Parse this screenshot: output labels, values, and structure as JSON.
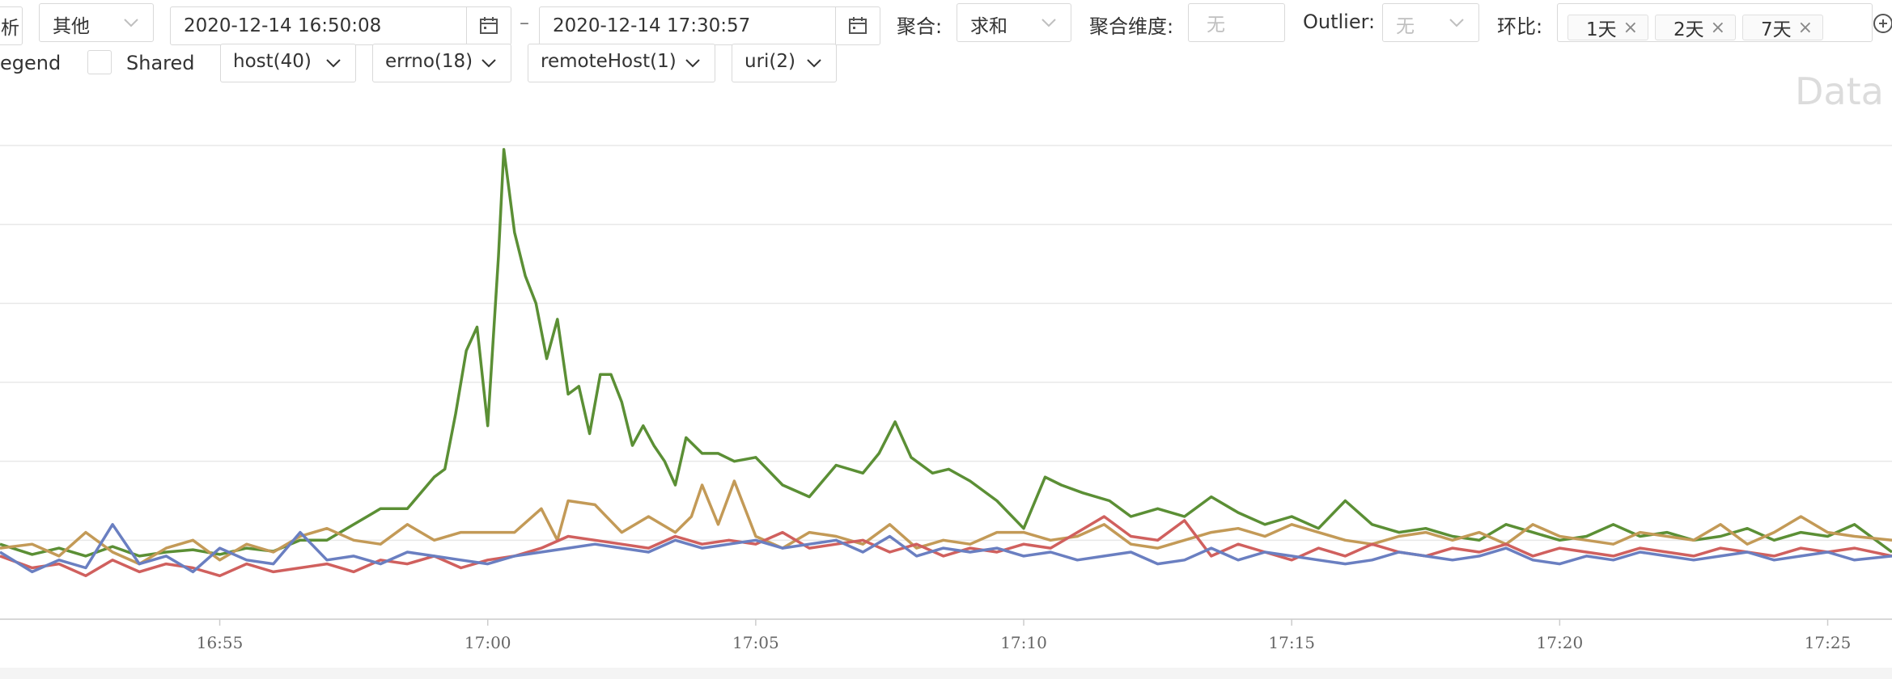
{
  "toolbar": {
    "partial_left_label": "析",
    "category_select": "其他",
    "start_time": "2020-12-14 16:50:08",
    "range_separator": "–",
    "end_time": "2020-12-14 17:30:57",
    "aggregate_label": "聚合:",
    "aggregate_value": "求和",
    "aggregate_dim_label": "聚合维度:",
    "aggregate_dim_placeholder": "无",
    "outlier_label": "Outlier:",
    "outlier_placeholder": "无",
    "compare_label": "环比:",
    "compare_tags": [
      "1天",
      "2天",
      "7天"
    ]
  },
  "row2": {
    "legend_label": "egend",
    "shared_label": "Shared",
    "filters": [
      "host(40)",
      "errno(18)",
      "remoteHost(1)",
      "uri(2)"
    ]
  },
  "chart_watermark": "Data",
  "chart_data": {
    "type": "line",
    "x_tick_labels": [
      "16:55",
      "17:00",
      "17:05",
      "17:10",
      "17:15",
      "17:20",
      "17:25"
    ],
    "x_tick_minutes": [
      -5,
      0,
      5,
      10,
      15,
      20,
      25
    ],
    "x_range_minutes": [
      -9.1,
      26.2
    ],
    "y_range": [
      0,
      6
    ],
    "gridlines": 6,
    "series": [
      {
        "color": "#5b8f35",
        "x": [
          -9.1,
          -8.5,
          -8,
          -7.5,
          -7,
          -6.5,
          -6,
          -5.5,
          -5,
          -4.5,
          -4,
          -3.5,
          -3,
          -2.5,
          -2,
          -1.5,
          -1,
          -0.8,
          -0.6,
          -0.4,
          -0.2,
          0,
          0.2,
          0.3,
          0.5,
          0.7,
          0.9,
          1.1,
          1.3,
          1.5,
          1.7,
          1.9,
          2.1,
          2.3,
          2.5,
          2.7,
          2.9,
          3.1,
          3.3,
          3.5,
          3.7,
          4,
          4.3,
          4.6,
          5,
          5.5,
          6,
          6.5,
          7,
          7.3,
          7.6,
          7.9,
          8.3,
          8.6,
          9,
          9.5,
          10,
          10.4,
          10.7,
          11.1,
          11.6,
          12,
          12.5,
          13,
          13.5,
          14,
          14.5,
          15,
          15.5,
          16,
          16.5,
          17,
          17.5,
          18,
          18.5,
          19,
          19.5,
          20,
          20.5,
          21,
          21.5,
          22,
          22.5,
          23,
          23.5,
          24,
          24.5,
          25,
          25.5,
          26.2
        ],
        "y": [
          0.95,
          0.82,
          0.9,
          0.8,
          0.92,
          0.8,
          0.85,
          0.88,
          0.82,
          0.9,
          0.86,
          1.0,
          1.0,
          1.2,
          1.4,
          1.4,
          1.8,
          1.9,
          2.6,
          3.4,
          3.7,
          2.45,
          4.6,
          5.95,
          4.9,
          4.35,
          4.0,
          3.3,
          3.8,
          2.85,
          2.95,
          2.35,
          3.1,
          3.1,
          2.75,
          2.2,
          2.45,
          2.2,
          2.0,
          1.7,
          2.3,
          2.1,
          2.1,
          2.0,
          2.05,
          1.7,
          1.55,
          1.95,
          1.85,
          2.1,
          2.5,
          2.05,
          1.85,
          1.9,
          1.75,
          1.5,
          1.15,
          1.8,
          1.7,
          1.6,
          1.5,
          1.3,
          1.4,
          1.3,
          1.55,
          1.35,
          1.2,
          1.3,
          1.15,
          1.5,
          1.2,
          1.1,
          1.15,
          1.05,
          1.0,
          1.2,
          1.1,
          1.0,
          1.05,
          1.2,
          1.05,
          1.1,
          1.0,
          1.05,
          1.15,
          1.0,
          1.1,
          1.05,
          1.2,
          0.85
        ]
      },
      {
        "color": "#c39a57",
        "x": [
          -9.1,
          -8.5,
          -8,
          -7.5,
          -7,
          -6.5,
          -6,
          -5.5,
          -5,
          -4.5,
          -4,
          -3.5,
          -3,
          -2.5,
          -2,
          -1.5,
          -1,
          -0.5,
          0,
          0.5,
          1,
          1.3,
          1.5,
          2,
          2.5,
          3,
          3.5,
          3.8,
          4,
          4.3,
          4.6,
          5,
          5.5,
          6,
          6.5,
          7,
          7.5,
          8,
          8.5,
          9,
          9.5,
          10,
          10.5,
          11,
          11.5,
          12,
          12.5,
          13,
          13.5,
          14,
          14.5,
          15,
          15.5,
          16,
          16.5,
          17,
          17.5,
          18,
          18.5,
          19,
          19.5,
          20,
          20.5,
          21,
          21.5,
          22,
          22.5,
          23,
          23.5,
          24,
          24.5,
          25,
          25.5,
          26.2
        ],
        "y": [
          0.9,
          0.95,
          0.8,
          1.1,
          0.85,
          0.7,
          0.9,
          1.0,
          0.75,
          0.95,
          0.85,
          1.05,
          1.15,
          1.0,
          0.95,
          1.2,
          1.0,
          1.1,
          1.1,
          1.1,
          1.4,
          1.0,
          1.5,
          1.45,
          1.1,
          1.3,
          1.1,
          1.3,
          1.7,
          1.2,
          1.75,
          1.05,
          0.9,
          1.1,
          1.05,
          0.95,
          1.2,
          0.9,
          1.0,
          0.95,
          1.1,
          1.1,
          1.0,
          1.05,
          1.2,
          0.95,
          0.9,
          1.0,
          1.1,
          1.15,
          1.05,
          1.2,
          1.1,
          1.0,
          0.95,
          1.05,
          1.1,
          1.0,
          1.1,
          0.95,
          1.2,
          1.05,
          1.0,
          0.95,
          1.1,
          1.05,
          1.0,
          1.2,
          0.95,
          1.1,
          1.3,
          1.1,
          1.05,
          1.0
        ]
      },
      {
        "color": "#d0605e",
        "x": [
          -9.1,
          -8.5,
          -8,
          -7.5,
          -7,
          -6.5,
          -6,
          -5.5,
          -5,
          -4.5,
          -4,
          -3.5,
          -3,
          -2.5,
          -2,
          -1.5,
          -1,
          -0.5,
          0,
          0.5,
          1,
          1.5,
          2,
          2.5,
          3,
          3.5,
          4,
          4.5,
          5,
          5.5,
          6,
          6.5,
          7,
          7.5,
          8,
          8.5,
          9,
          9.5,
          10,
          10.5,
          11,
          11.5,
          12,
          12.5,
          13,
          13.5,
          14,
          14.5,
          15,
          15.5,
          16,
          16.5,
          17,
          17.5,
          18,
          18.5,
          19,
          19.5,
          20,
          20.5,
          21,
          21.5,
          22,
          22.5,
          23,
          23.5,
          24,
          24.5,
          25,
          25.5,
          26.2
        ],
        "y": [
          0.8,
          0.65,
          0.7,
          0.55,
          0.75,
          0.6,
          0.7,
          0.65,
          0.55,
          0.7,
          0.6,
          0.65,
          0.7,
          0.6,
          0.75,
          0.7,
          0.8,
          0.65,
          0.75,
          0.8,
          0.9,
          1.05,
          1.0,
          0.95,
          0.9,
          1.05,
          0.95,
          1.0,
          0.95,
          1.1,
          0.9,
          0.95,
          1.0,
          0.85,
          0.95,
          0.8,
          0.9,
          0.85,
          0.95,
          0.9,
          1.1,
          1.3,
          1.05,
          1.0,
          1.25,
          0.8,
          0.95,
          0.85,
          0.75,
          0.9,
          0.8,
          0.95,
          0.85,
          0.8,
          0.9,
          0.85,
          0.95,
          0.8,
          0.9,
          0.85,
          0.8,
          0.9,
          0.85,
          0.8,
          0.9,
          0.85,
          0.8,
          0.9,
          0.85,
          0.9,
          0.8
        ]
      },
      {
        "color": "#6a7fc1",
        "x": [
          -9.1,
          -8.5,
          -8,
          -7.5,
          -7,
          -6.5,
          -6,
          -5.5,
          -5,
          -4.5,
          -4,
          -3.5,
          -3,
          -2.5,
          -2,
          -1.5,
          -1,
          -0.5,
          0,
          0.5,
          1,
          1.5,
          2,
          2.5,
          3,
          3.5,
          4,
          4.5,
          5,
          5.5,
          6,
          6.5,
          7,
          7.5,
          8,
          8.5,
          9,
          9.5,
          10,
          10.5,
          11,
          11.5,
          12,
          12.5,
          13,
          13.5,
          14,
          14.5,
          15,
          15.5,
          16,
          16.5,
          17,
          17.5,
          18,
          18.5,
          19,
          19.5,
          20,
          20.5,
          21,
          21.5,
          22,
          22.5,
          23,
          23.5,
          24,
          24.5,
          25,
          25.5,
          26.2
        ],
        "y": [
          0.85,
          0.6,
          0.75,
          0.65,
          1.2,
          0.7,
          0.8,
          0.6,
          0.9,
          0.75,
          0.7,
          1.1,
          0.75,
          0.8,
          0.7,
          0.85,
          0.8,
          0.75,
          0.7,
          0.8,
          0.85,
          0.9,
          0.95,
          0.9,
          0.85,
          1.0,
          0.9,
          0.95,
          1.0,
          0.9,
          0.95,
          1.0,
          0.85,
          1.05,
          0.8,
          0.9,
          0.85,
          0.9,
          0.8,
          0.85,
          0.75,
          0.8,
          0.85,
          0.7,
          0.75,
          0.9,
          0.75,
          0.85,
          0.8,
          0.75,
          0.7,
          0.75,
          0.85,
          0.8,
          0.75,
          0.8,
          0.9,
          0.75,
          0.7,
          0.8,
          0.75,
          0.85,
          0.8,
          0.75,
          0.8,
          0.85,
          0.75,
          0.8,
          0.85,
          0.75,
          0.8
        ]
      }
    ]
  }
}
